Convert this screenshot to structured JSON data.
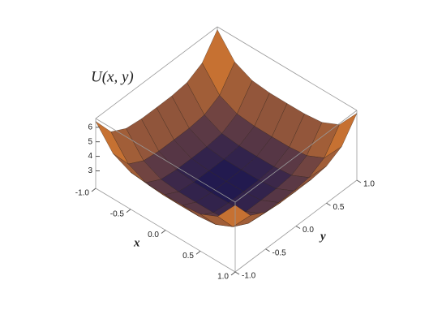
{
  "chart_data": {
    "type": "surface",
    "title": "U(x, y)",
    "xlabel": "x",
    "ylabel": "y",
    "x": [
      -1,
      -0.75,
      -0.5,
      -0.25,
      0,
      0.25,
      0.5,
      0.75,
      1
    ],
    "y": [
      -1,
      -0.75,
      -0.5,
      -0.25,
      0,
      0.25,
      0.5,
      0.75,
      1
    ],
    "z": [
      [
        6.4,
        4.9,
        4.34,
        4.21,
        4.2,
        4.21,
        4.34,
        4.9,
        6.4
      ],
      [
        4.9,
        3.4,
        2.84,
        2.71,
        2.7,
        2.71,
        2.84,
        3.4,
        4.9
      ],
      [
        4.34,
        2.84,
        2.28,
        2.15,
        2.14,
        2.15,
        2.28,
        2.84,
        4.34
      ],
      [
        4.21,
        2.71,
        2.15,
        2.02,
        2.01,
        2.02,
        2.15,
        2.71,
        4.21
      ],
      [
        4.2,
        2.7,
        2.14,
        2.01,
        2,
        2.01,
        2.14,
        2.7,
        4.2
      ],
      [
        4.21,
        2.71,
        2.15,
        2.02,
        2.01,
        2.02,
        2.15,
        2.71,
        4.21
      ],
      [
        4.34,
        2.84,
        2.28,
        2.15,
        2.14,
        2.15,
        2.28,
        2.84,
        4.34
      ],
      [
        4.9,
        3.4,
        2.84,
        2.71,
        2.7,
        2.71,
        2.84,
        3.4,
        4.9
      ],
      [
        6.4,
        4.9,
        4.34,
        4.21,
        4.2,
        4.21,
        4.34,
        4.9,
        6.4
      ]
    ],
    "xlim": [
      -1,
      1
    ],
    "ylim": [
      -1,
      1
    ],
    "zlim": [
      1.8,
      6.6
    ],
    "xticks": [
      {
        "value": -1,
        "label": "-1.0"
      },
      {
        "value": -0.5,
        "label": "-0.5"
      },
      {
        "value": 0,
        "label": "0.0"
      },
      {
        "value": 0.5,
        "label": "0.5"
      },
      {
        "value": 1,
        "label": "1.0"
      }
    ],
    "yticks": [
      {
        "value": -1,
        "label": "-1.0"
      },
      {
        "value": -0.5,
        "label": "-0.5"
      },
      {
        "value": 0,
        "label": "0.0"
      },
      {
        "value": 0.5,
        "label": "0.5"
      },
      {
        "value": 1,
        "label": "1.0"
      }
    ],
    "zticks": [
      3,
      4,
      5,
      6
    ],
    "low_color": "#1a1650",
    "high_color": "#f2892a"
  }
}
